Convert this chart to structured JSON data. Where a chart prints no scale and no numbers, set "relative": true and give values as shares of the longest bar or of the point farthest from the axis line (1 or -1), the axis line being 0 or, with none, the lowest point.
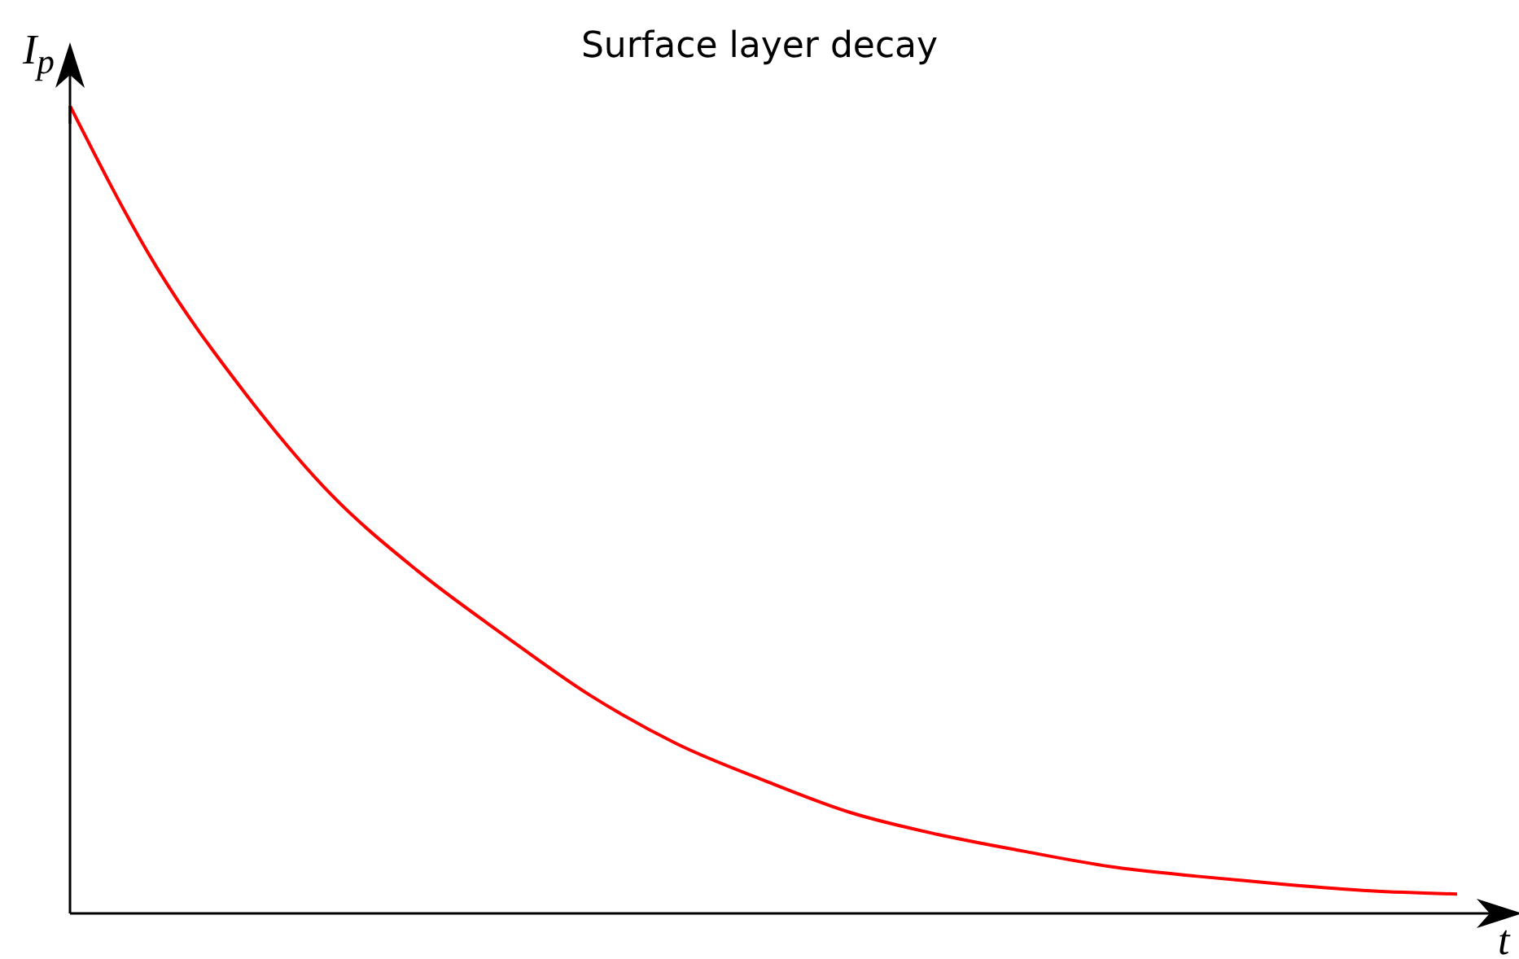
{
  "chart_data": {
    "type": "line",
    "title": "Surface layer decay",
    "xlabel": "t",
    "ylabel": "I$_{p}$",
    "relative": true,
    "categories": [
      null,
      null,
      null,
      null,
      null,
      null,
      null,
      null,
      null,
      null,
      null,
      null,
      null,
      null,
      null,
      null,
      null
    ],
    "series": [
      {
        "color": "#ff0000",
        "values": [
          1,
          0.8,
          0.647,
          0.52,
          0.425,
          0.345,
          0.27,
          0.21,
          0.165,
          0.125,
          0.098,
          0.077,
          0.058,
          0.046,
          0.036,
          0.028,
          0.024
        ]
      }
    ],
    "grid": false,
    "legend": false,
    "marker": "none",
    "line_style": "solid"
  }
}
